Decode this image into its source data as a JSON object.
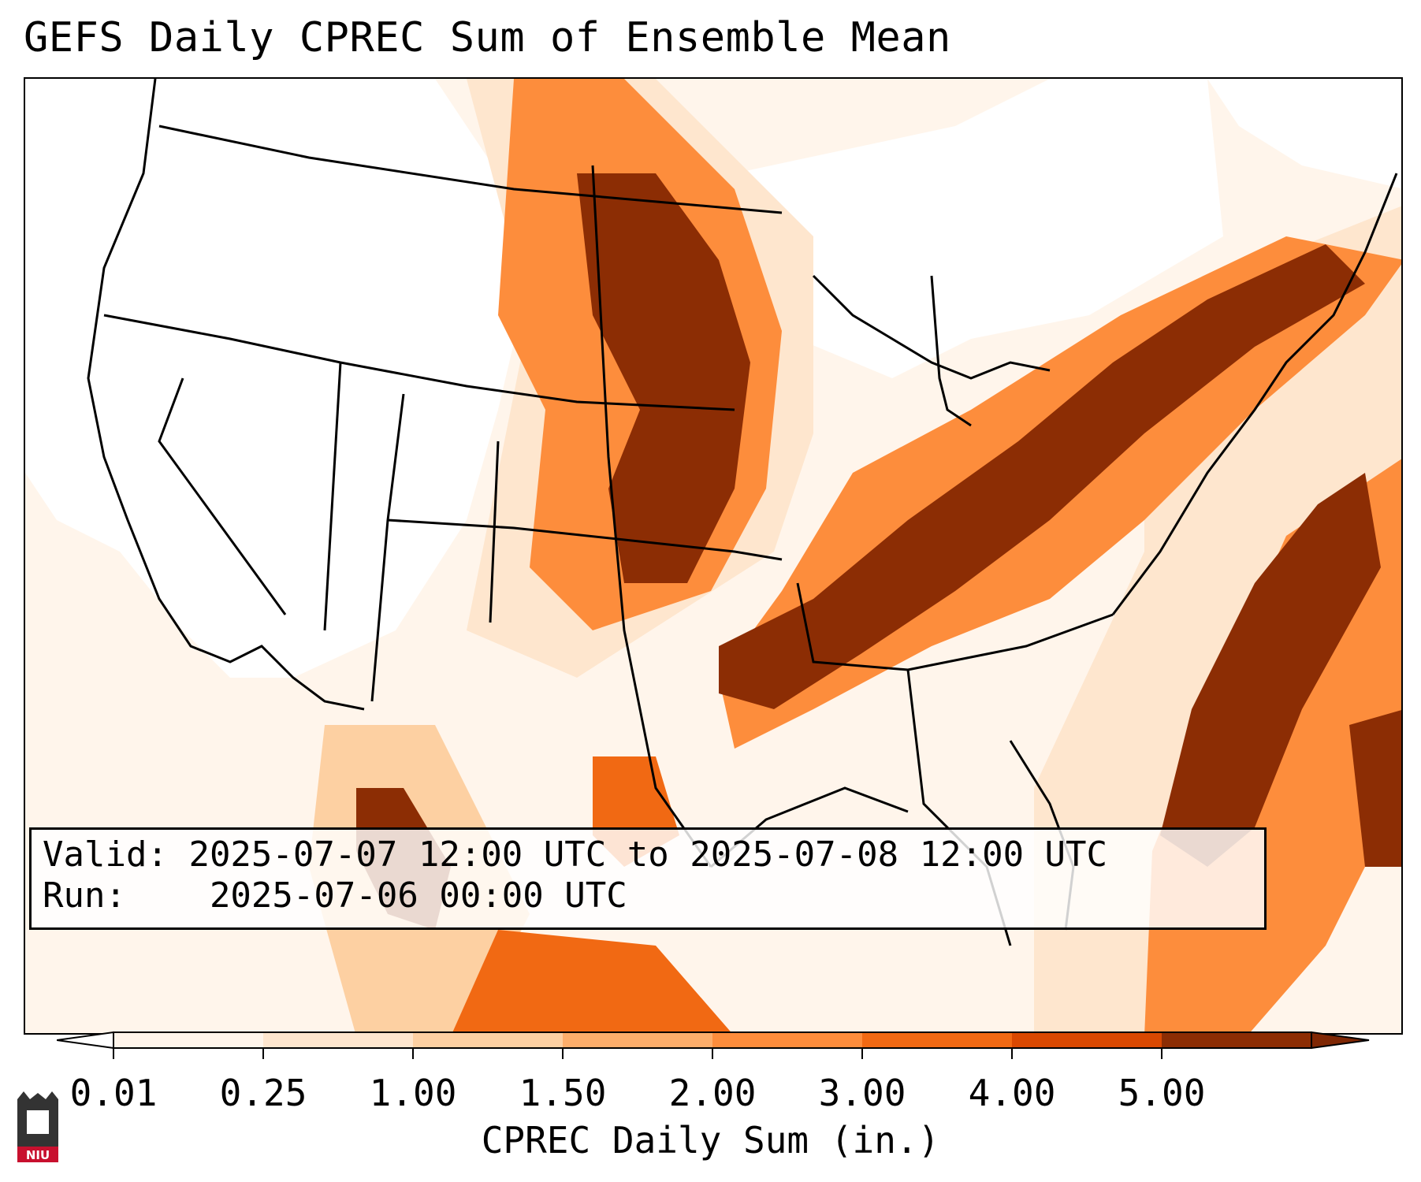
{
  "title": "GEFS Daily CPREC Sum of Ensemble Mean",
  "info": {
    "valid_label": "Valid:",
    "valid_value": "2025-07-07 12:00 UTC to 2025-07-08 12:00 UTC",
    "run_label": "Run:",
    "run_value": "2025-07-06 00:00 UTC"
  },
  "colorbar": {
    "label": "CPREC Daily Sum (in.)",
    "ticks": [
      "0.01",
      "0.25",
      "1.00",
      "1.50",
      "2.00",
      "3.00",
      "4.00",
      "5.00"
    ],
    "colors": [
      "#fff5eb",
      "#fee6ce",
      "#fdd0a2",
      "#fdae6b",
      "#fd8d3c",
      "#f16913",
      "#d94801",
      "#8c2d04"
    ],
    "under_color": "#ffffff",
    "over_color": "#7f2704"
  },
  "logo": {
    "text": "NIU",
    "accent": "#c8102e"
  },
  "map": {
    "region": "Contiguous United States",
    "max_band_color": "#8c2d04"
  }
}
